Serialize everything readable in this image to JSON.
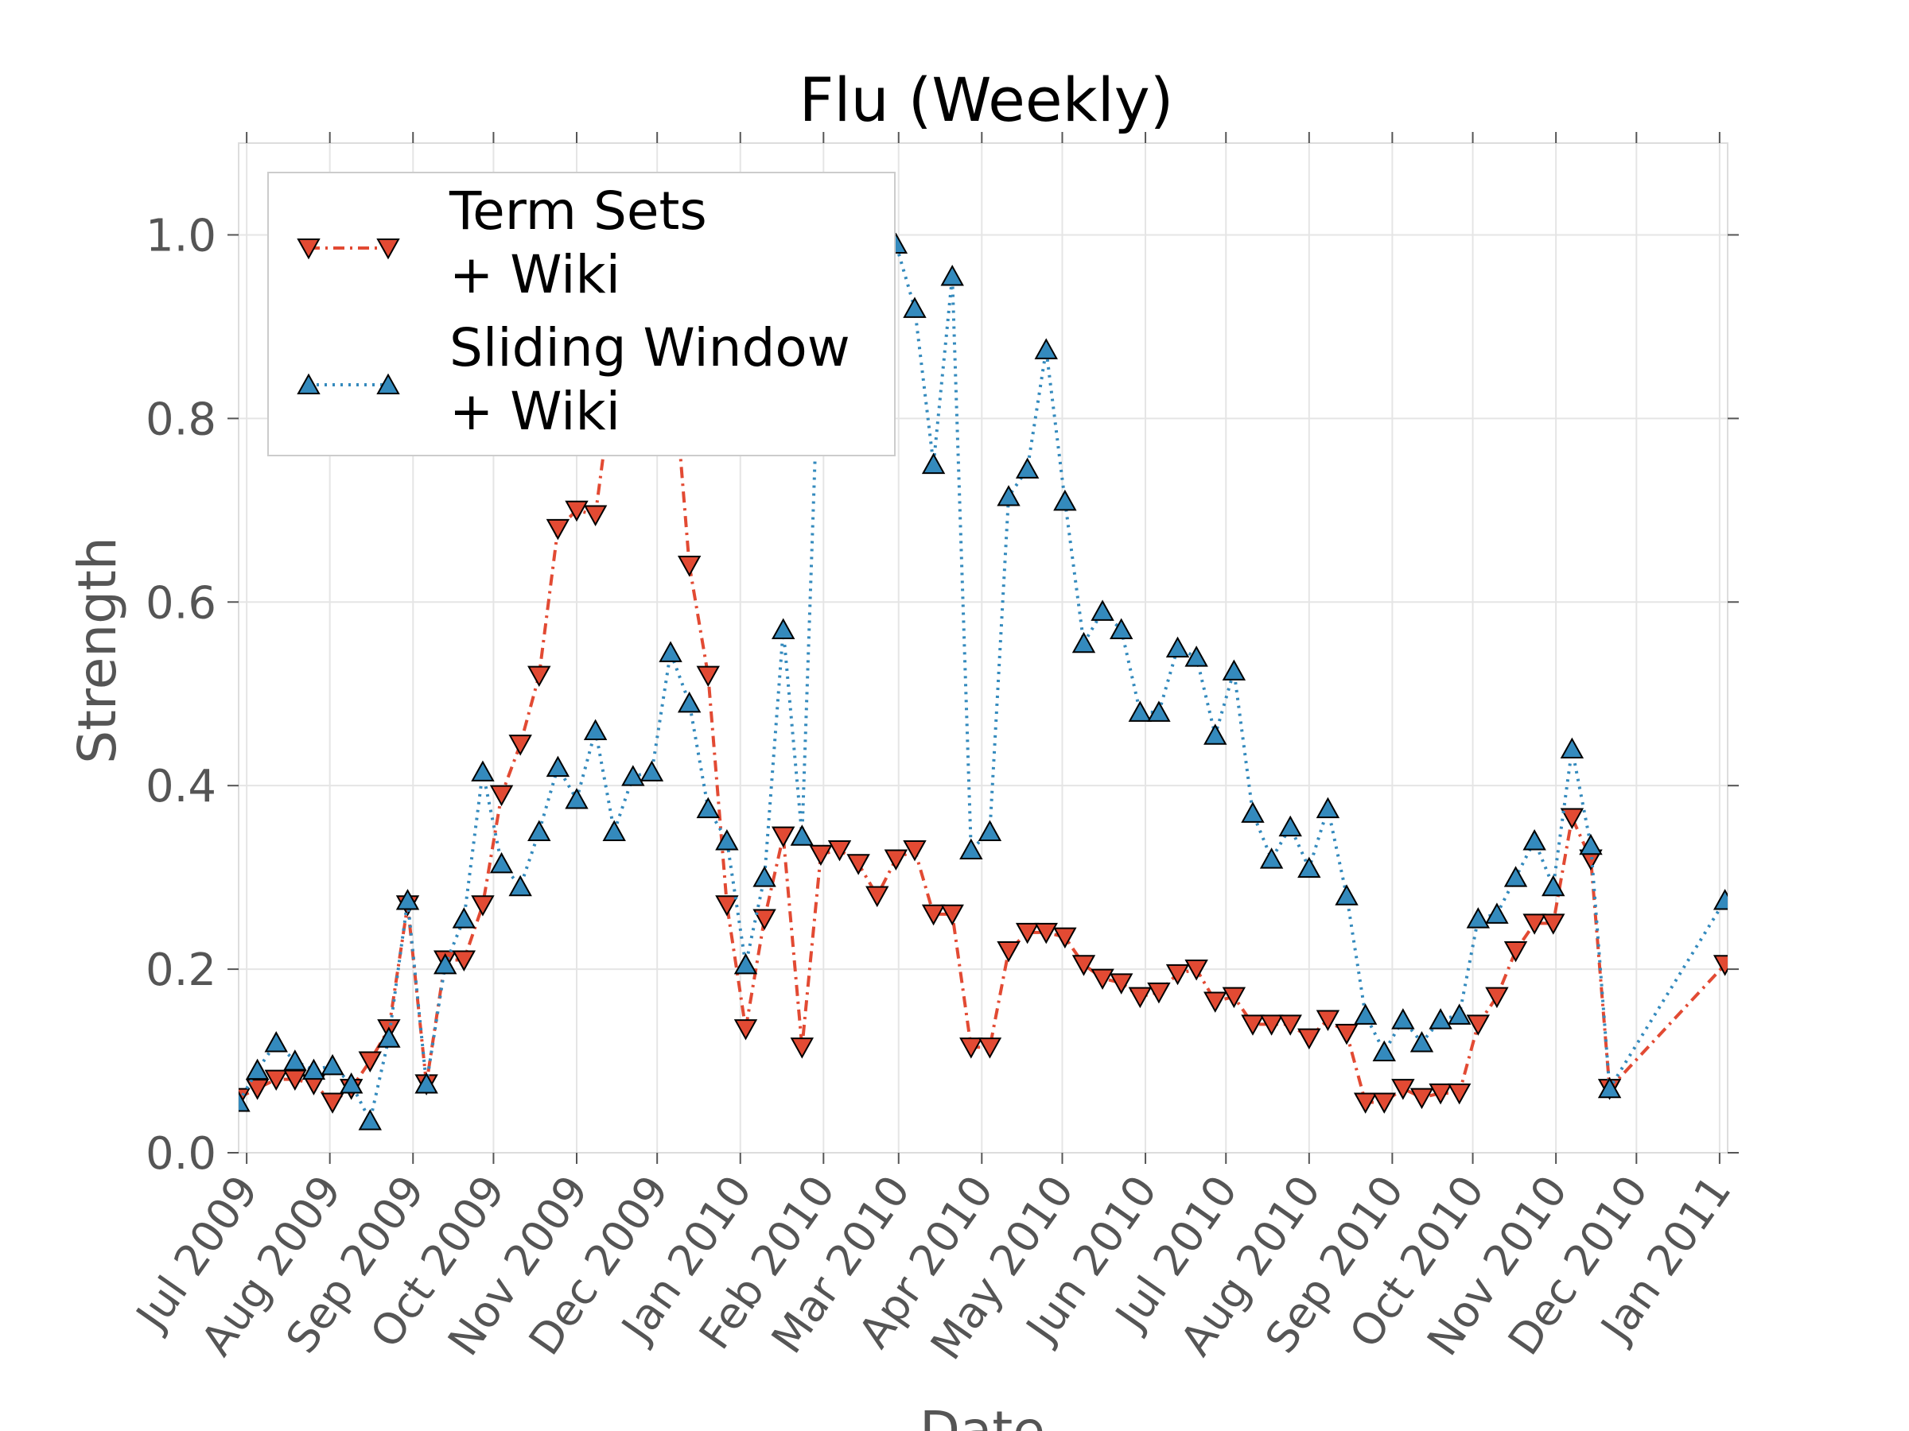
{
  "chart_data": {
    "type": "line",
    "title": "Flu (Weekly)",
    "xlabel": "Date",
    "ylabel": "Strength",
    "xlim": [
      "2009-06-28",
      "2011-01-04"
    ],
    "ylim": [
      0,
      1.1
    ],
    "grid": true,
    "legend_position": "top-left",
    "x_ticks": [
      {
        "date": "2009-07-01",
        "label": "Jul 2009"
      },
      {
        "date": "2009-08-01",
        "label": "Aug 2009"
      },
      {
        "date": "2009-09-01",
        "label": "Sep 2009"
      },
      {
        "date": "2009-10-01",
        "label": "Oct 2009"
      },
      {
        "date": "2009-11-01",
        "label": "Nov 2009"
      },
      {
        "date": "2009-12-01",
        "label": "Dec 2009"
      },
      {
        "date": "2010-01-01",
        "label": "Jan 2010"
      },
      {
        "date": "2010-02-01",
        "label": "Feb 2010"
      },
      {
        "date": "2010-03-01",
        "label": "Mar 2010"
      },
      {
        "date": "2010-04-01",
        "label": "Apr 2010"
      },
      {
        "date": "2010-05-01",
        "label": "May 2010"
      },
      {
        "date": "2010-06-01",
        "label": "Jun 2010"
      },
      {
        "date": "2010-07-01",
        "label": "Jul 2010"
      },
      {
        "date": "2010-08-01",
        "label": "Aug 2010"
      },
      {
        "date": "2010-09-01",
        "label": "Sep 2010"
      },
      {
        "date": "2010-10-01",
        "label": "Oct 2010"
      },
      {
        "date": "2010-11-01",
        "label": "Nov 2010"
      },
      {
        "date": "2010-12-01",
        "label": "Dec 2010"
      },
      {
        "date": "2011-01-01",
        "label": "Jan 2011"
      }
    ],
    "y_ticks": [
      {
        "value": 0.0,
        "label": "0.0"
      },
      {
        "value": 0.2,
        "label": "0.2"
      },
      {
        "value": 0.4,
        "label": "0.4"
      },
      {
        "value": 0.6,
        "label": "0.6"
      },
      {
        "value": 0.8,
        "label": "0.8"
      },
      {
        "value": 1.0,
        "label": "1.0"
      }
    ],
    "series": [
      {
        "name": "Term Sets\n+ Wiki",
        "color": "#e24a33",
        "marker": "triangle-down",
        "linestyle": "dashdot",
        "x": [
          "2009-06-28",
          "2009-07-05",
          "2009-07-12",
          "2009-07-19",
          "2009-07-26",
          "2009-08-02",
          "2009-08-09",
          "2009-08-16",
          "2009-08-23",
          "2009-08-30",
          "2009-09-06",
          "2009-09-13",
          "2009-09-20",
          "2009-09-27",
          "2009-10-04",
          "2009-10-11",
          "2009-10-18",
          "2009-10-25",
          "2009-11-01",
          "2009-11-08",
          "2009-11-15",
          "2009-11-22",
          "2009-11-29",
          "2009-12-06",
          "2009-12-13",
          "2009-12-20",
          "2009-12-27",
          "2010-01-03",
          "2010-01-10",
          "2010-01-17",
          "2010-01-24",
          "2010-01-31",
          "2010-02-07",
          "2010-02-14",
          "2010-02-21",
          "2010-02-28",
          "2010-03-07",
          "2010-03-14",
          "2010-03-21",
          "2010-03-28",
          "2010-04-04",
          "2010-04-11",
          "2010-04-18",
          "2010-04-25",
          "2010-05-02",
          "2010-05-09",
          "2010-05-16",
          "2010-05-23",
          "2010-05-30",
          "2010-06-06",
          "2010-06-13",
          "2010-06-20",
          "2010-06-27",
          "2010-07-04",
          "2010-07-11",
          "2010-07-18",
          "2010-07-25",
          "2010-08-01",
          "2010-08-08",
          "2010-08-15",
          "2010-08-22",
          "2010-08-29",
          "2010-09-05",
          "2010-09-12",
          "2010-09-19",
          "2010-09-26",
          "2010-10-03",
          "2010-10-10",
          "2010-10-17",
          "2010-10-24",
          "2010-10-31",
          "2010-11-07",
          "2010-11-14",
          "2010-11-21",
          "2011-01-03"
        ],
        "values": [
          0.06,
          0.07,
          0.08,
          0.08,
          0.075,
          0.055,
          0.07,
          0.1,
          0.135,
          0.27,
          0.075,
          0.21,
          0.21,
          0.27,
          0.39,
          0.445,
          0.52,
          0.68,
          0.7,
          0.695,
          0.85,
          0.95,
          0.9,
          0.89,
          0.64,
          0.52,
          0.27,
          0.135,
          0.255,
          0.345,
          0.115,
          0.325,
          0.33,
          0.315,
          0.28,
          0.32,
          0.33,
          0.26,
          0.26,
          0.115,
          0.115,
          0.22,
          0.24,
          0.24,
          0.235,
          0.205,
          0.19,
          0.185,
          0.17,
          0.175,
          0.195,
          0.2,
          0.165,
          0.17,
          0.14,
          0.14,
          0.14,
          0.125,
          0.145,
          0.13,
          0.055,
          0.055,
          0.07,
          0.06,
          0.065,
          0.065,
          0.14,
          0.17,
          0.22,
          0.25,
          0.25,
          0.365,
          0.32,
          0.07,
          0.205
        ]
      },
      {
        "name": "Sliding Window\n+ Wiki",
        "color": "#348abd",
        "marker": "triangle-up",
        "linestyle": "dotted",
        "x": [
          "2009-06-28",
          "2009-07-05",
          "2009-07-12",
          "2009-07-19",
          "2009-07-26",
          "2009-08-02",
          "2009-08-09",
          "2009-08-16",
          "2009-08-23",
          "2009-08-30",
          "2009-09-06",
          "2009-09-13",
          "2009-09-20",
          "2009-09-27",
          "2009-10-04",
          "2009-10-11",
          "2009-10-18",
          "2009-10-25",
          "2009-11-01",
          "2009-11-08",
          "2009-11-15",
          "2009-11-22",
          "2009-11-29",
          "2009-12-06",
          "2009-12-13",
          "2009-12-20",
          "2009-12-27",
          "2010-01-03",
          "2010-01-10",
          "2010-01-17",
          "2010-01-24",
          "2010-01-31",
          "2010-02-07",
          "2010-02-14",
          "2010-02-21",
          "2010-02-28",
          "2010-03-07",
          "2010-03-14",
          "2010-03-21",
          "2010-03-28",
          "2010-04-04",
          "2010-04-11",
          "2010-04-18",
          "2010-04-25",
          "2010-05-02",
          "2010-05-09",
          "2010-05-16",
          "2010-05-23",
          "2010-05-30",
          "2010-06-06",
          "2010-06-13",
          "2010-06-20",
          "2010-06-27",
          "2010-07-04",
          "2010-07-11",
          "2010-07-18",
          "2010-07-25",
          "2010-08-01",
          "2010-08-08",
          "2010-08-15",
          "2010-08-22",
          "2010-08-29",
          "2010-09-05",
          "2010-09-12",
          "2010-09-19",
          "2010-09-26",
          "2010-10-03",
          "2010-10-10",
          "2010-10-17",
          "2010-10-24",
          "2010-10-31",
          "2010-11-07",
          "2010-11-14",
          "2010-11-21",
          "2011-01-03"
        ],
        "values": [
          0.055,
          0.09,
          0.12,
          0.1,
          0.09,
          0.095,
          0.075,
          0.035,
          0.125,
          0.275,
          0.075,
          0.205,
          0.255,
          0.415,
          0.315,
          0.29,
          0.35,
          0.42,
          0.385,
          0.46,
          0.35,
          0.41,
          0.415,
          0.545,
          0.49,
          0.375,
          0.34,
          0.205,
          0.3,
          0.57,
          0.345,
          0.94,
          0.97,
          0.98,
          0.99,
          0.99,
          0.92,
          0.75,
          0.955,
          0.33,
          0.35,
          0.715,
          0.745,
          0.875,
          0.71,
          0.555,
          0.59,
          0.57,
          0.48,
          0.48,
          0.55,
          0.54,
          0.455,
          0.525,
          0.37,
          0.32,
          0.355,
          0.31,
          0.375,
          0.28,
          0.15,
          0.11,
          0.145,
          0.12,
          0.145,
          0.15,
          0.255,
          0.26,
          0.3,
          0.34,
          0.29,
          0.44,
          0.335,
          0.07,
          0.275
        ]
      }
    ]
  }
}
